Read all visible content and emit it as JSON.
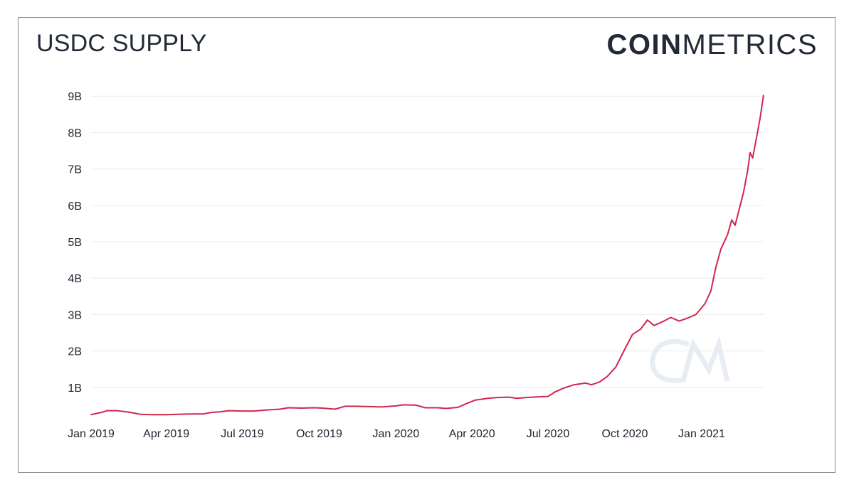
{
  "header": {
    "title": "USDC SUPPLY"
  },
  "brand": {
    "bold": "COIN",
    "regular": "METRICS",
    "watermark": "CM"
  },
  "chart_data": {
    "type": "line",
    "title": "USDC SUPPLY",
    "xlabel": "",
    "ylabel": "",
    "y_tick_labels": [
      "1B",
      "2B",
      "3B",
      "4B",
      "5B",
      "6B",
      "7B",
      "8B",
      "9B"
    ],
    "y_ticks": [
      1,
      2,
      3,
      4,
      5,
      6,
      7,
      8,
      9
    ],
    "x_tick_labels": [
      "Jan 2019",
      "Apr 2019",
      "Jul 2019",
      "Oct 2019",
      "Jan 2020",
      "Apr 2020",
      "Jul 2020",
      "Oct 2020",
      "Jan 2021"
    ],
    "x_ticks": [
      "2019-01-01",
      "2019-04-01",
      "2019-07-01",
      "2019-10-01",
      "2020-01-01",
      "2020-04-01",
      "2020-07-01",
      "2020-10-01",
      "2021-01-01"
    ],
    "xlim": [
      "2019-01-01",
      "2021-03-17"
    ],
    "ylim": [
      0,
      9
    ],
    "grid": "horizontal",
    "line_color": "#d0274f",
    "series": [
      {
        "values": [
          [
            "2019-01-01",
            0.25
          ],
          [
            "2019-01-15",
            0.32
          ],
          [
            "2019-01-20",
            0.36
          ],
          [
            "2019-02-01",
            0.36
          ],
          [
            "2019-02-15",
            0.32
          ],
          [
            "2019-03-01",
            0.26
          ],
          [
            "2019-03-15",
            0.25
          ],
          [
            "2019-04-01",
            0.25
          ],
          [
            "2019-04-15",
            0.26
          ],
          [
            "2019-05-01",
            0.27
          ],
          [
            "2019-05-15",
            0.27
          ],
          [
            "2019-05-25",
            0.31
          ],
          [
            "2019-06-05",
            0.33
          ],
          [
            "2019-06-15",
            0.36
          ],
          [
            "2019-07-01",
            0.35
          ],
          [
            "2019-07-15",
            0.35
          ],
          [
            "2019-08-01",
            0.38
          ],
          [
            "2019-08-15",
            0.4
          ],
          [
            "2019-08-25",
            0.44
          ],
          [
            "2019-09-10",
            0.43
          ],
          [
            "2019-09-25",
            0.44
          ],
          [
            "2019-10-05",
            0.43
          ],
          [
            "2019-10-20",
            0.4
          ],
          [
            "2019-11-01",
            0.48
          ],
          [
            "2019-11-15",
            0.48
          ],
          [
            "2019-12-01",
            0.47
          ],
          [
            "2019-12-15",
            0.46
          ],
          [
            "2020-01-01",
            0.49
          ],
          [
            "2020-01-10",
            0.52
          ],
          [
            "2020-01-25",
            0.51
          ],
          [
            "2020-02-05",
            0.44
          ],
          [
            "2020-02-20",
            0.44
          ],
          [
            "2020-03-01",
            0.42
          ],
          [
            "2020-03-15",
            0.45
          ],
          [
            "2020-03-25",
            0.55
          ],
          [
            "2020-04-05",
            0.65
          ],
          [
            "2020-04-20",
            0.7
          ],
          [
            "2020-05-01",
            0.72
          ],
          [
            "2020-05-15",
            0.73
          ],
          [
            "2020-05-25",
            0.7
          ],
          [
            "2020-06-05",
            0.72
          ],
          [
            "2020-06-20",
            0.74
          ],
          [
            "2020-07-01",
            0.75
          ],
          [
            "2020-07-10",
            0.88
          ],
          [
            "2020-07-20",
            0.98
          ],
          [
            "2020-08-01",
            1.07
          ],
          [
            "2020-08-15",
            1.12
          ],
          [
            "2020-08-22",
            1.07
          ],
          [
            "2020-09-01",
            1.15
          ],
          [
            "2020-09-10",
            1.3
          ],
          [
            "2020-09-20",
            1.55
          ],
          [
            "2020-10-01",
            2.05
          ],
          [
            "2020-10-10",
            2.45
          ],
          [
            "2020-10-20",
            2.6
          ],
          [
            "2020-10-28",
            2.85
          ],
          [
            "2020-11-05",
            2.7
          ],
          [
            "2020-11-15",
            2.8
          ],
          [
            "2020-11-25",
            2.92
          ],
          [
            "2020-12-05",
            2.82
          ],
          [
            "2020-12-15",
            2.9
          ],
          [
            "2020-12-25",
            3.0
          ],
          [
            "2021-01-05",
            3.3
          ],
          [
            "2021-01-12",
            3.65
          ],
          [
            "2021-01-18",
            4.3
          ],
          [
            "2021-01-24",
            4.8
          ],
          [
            "2021-02-01",
            5.2
          ],
          [
            "2021-02-06",
            5.6
          ],
          [
            "2021-02-10",
            5.45
          ],
          [
            "2021-02-15",
            5.9
          ],
          [
            "2021-02-20",
            6.35
          ],
          [
            "2021-02-25",
            6.95
          ],
          [
            "2021-02-28",
            7.45
          ],
          [
            "2021-03-03",
            7.3
          ],
          [
            "2021-03-08",
            7.9
          ],
          [
            "2021-03-12",
            8.4
          ],
          [
            "2021-03-16",
            9.02
          ]
        ]
      }
    ]
  }
}
